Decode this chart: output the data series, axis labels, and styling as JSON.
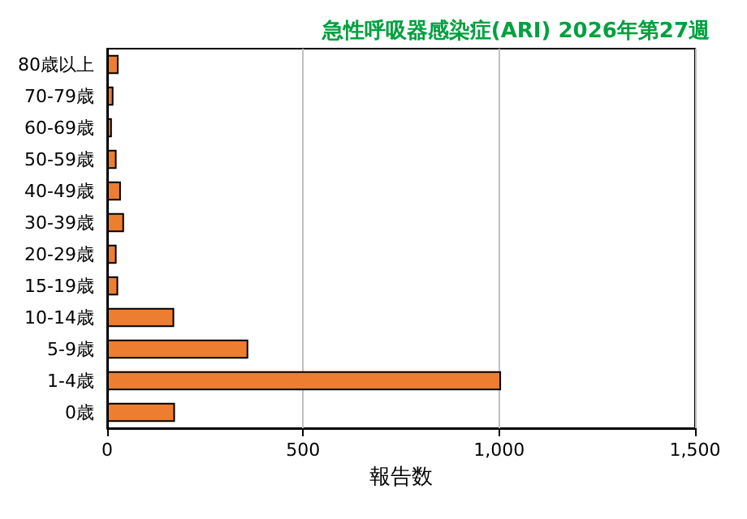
{
  "chart_data": {
    "type": "bar",
    "orientation": "horizontal",
    "title": "急性呼吸器感染症(ARI) 2026年第27週",
    "xlabel": "報告数",
    "categories": [
      "80歳以上",
      "70-79歳",
      "60-69歳",
      "50-59歳",
      "40-49歳",
      "30-39歳",
      "20-29歳",
      "15-19歳",
      "10-14歳",
      "5-9歳",
      "1-4歳",
      "0歳"
    ],
    "values": [
      29,
      16,
      12,
      24,
      35,
      43,
      24,
      28,
      171,
      360,
      1005,
      173
    ],
    "color": "#ed7d31",
    "xlim": [
      0,
      1500
    ],
    "xticks": [
      0,
      500,
      {
        "value": 1000,
        "label": "1,000"
      },
      {
        "value": 1500,
        "label": "1,500"
      }
    ],
    "grid": "x"
  }
}
